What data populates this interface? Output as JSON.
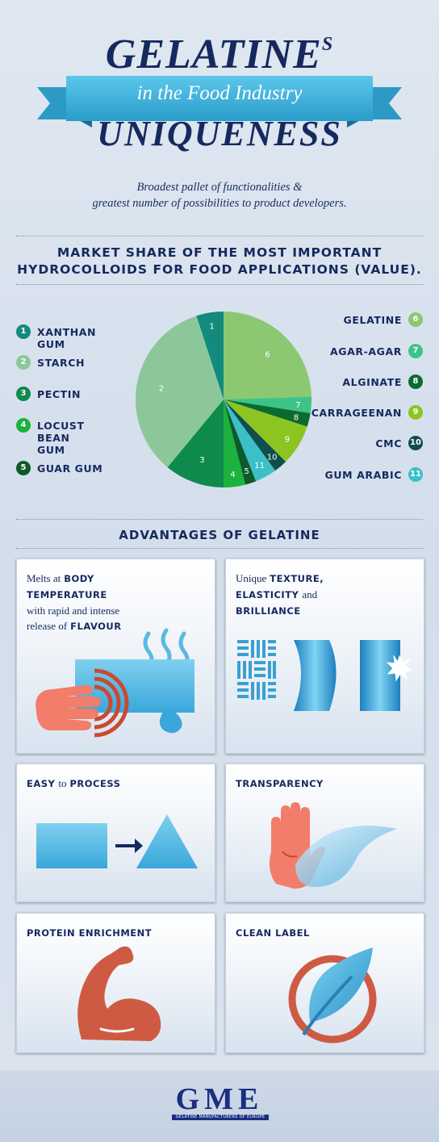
{
  "header": {
    "title_main": "GELATINE",
    "title_sup": "S",
    "ribbon_text": "in the Food Industry",
    "title_second": "UNIQUENESS",
    "tagline_line1": "Broadest pallet of functionalities &",
    "tagline_line2": "greatest number of possibilities to product developers."
  },
  "market_share": {
    "heading_line1": "MARKET SHARE OF THE MOST IMPORTANT",
    "heading_line2": "HYDROCOLLOIDS FOR FOOD APPLICATIONS (VALUE)."
  },
  "chart_data": {
    "type": "pie",
    "slices": [
      {
        "label": "1",
        "name": "XANTHAN GUM",
        "value": 5.0,
        "color": "#128a7c"
      },
      {
        "label": "6",
        "name": "GELATINE",
        "value": 24.5,
        "color": "#8cc772"
      },
      {
        "label": "7",
        "name": "AGAR-AGAR",
        "value": 3.0,
        "color": "#3cc486"
      },
      {
        "label": "8",
        "name": "ALGINATE",
        "value": 2.5,
        "color": "#0b6a2e"
      },
      {
        "label": "9",
        "name": "CARRAGEENAN",
        "value": 7.5,
        "color": "#8cc522"
      },
      {
        "label": "10",
        "name": "CMC",
        "value": 2.5,
        "color": "#0e4e4c"
      },
      {
        "label": "11",
        "name": "GUM ARABIC",
        "value": 4.0,
        "color": "#3bc0c8"
      },
      {
        "label": "5",
        "name": "GUAR GUM",
        "value": 2.0,
        "color": "#0b5a2a"
      },
      {
        "label": "4",
        "name": "LOCUST BEAN GUM",
        "value": 4.0,
        "color": "#1bb23d"
      },
      {
        "label": "3",
        "name": "PECTIN",
        "value": 11.0,
        "color": "#0e8a4c"
      },
      {
        "label": "2",
        "name": "STARCH",
        "value": 34.0,
        "color": "#8cc79a"
      }
    ],
    "legend_left": [
      {
        "num": "1",
        "name": "XANTHAN GUM"
      },
      {
        "num": "2",
        "name": "STARCH"
      },
      {
        "num": "3",
        "name": "PECTIN"
      },
      {
        "num": "4",
        "name": "LOCUST BEAN GUM"
      },
      {
        "num": "5",
        "name": "GUAR GUM"
      }
    ],
    "legend_right": [
      {
        "num": "6",
        "name": "GELATINE"
      },
      {
        "num": "7",
        "name": "AGAR-AGAR"
      },
      {
        "num": "8",
        "name": "ALGINATE"
      },
      {
        "num": "9",
        "name": "CARRAGEENAN"
      },
      {
        "num": "10",
        "name": "CMC"
      },
      {
        "num": "11",
        "name": "GUM ARABIC"
      }
    ]
  },
  "advantages": {
    "heading": "ADVANTAGES OF GELATINE",
    "cards": [
      {
        "id": "melt",
        "t1": "Melts at",
        "b1": "BODY",
        "b2": "TEMPERATURE",
        "t2": "with rapid and intense",
        "t3": "release of",
        "b3": "FLAVOUR",
        "icon": "hand-heat-icon"
      },
      {
        "id": "texture",
        "t1": "Unique",
        "b1": "TEXTURE,",
        "b2": "ELASTICITY",
        "t2": "and",
        "b3": "BRILLIANCE",
        "icon": "texture-elasticity-brilliance-icon"
      },
      {
        "id": "process",
        "b1": "EASY",
        "t1": "to",
        "b2": "PROCESS",
        "icon": "square-to-triangle-icon"
      },
      {
        "id": "transparency",
        "b1": "TRANSPARENCY",
        "icon": "hand-behind-film-icon"
      },
      {
        "id": "protein",
        "b1": "PROTEIN ENRICHMENT",
        "icon": "flexed-arm-icon"
      },
      {
        "id": "clean",
        "b1": "CLEAN LABEL",
        "icon": "leaf-circle-icon"
      }
    ]
  },
  "footer": {
    "logo": "GME",
    "logo_sub": "GELATINE MANUFACTURERS OF EUROPE",
    "color": "#1b2f80"
  }
}
